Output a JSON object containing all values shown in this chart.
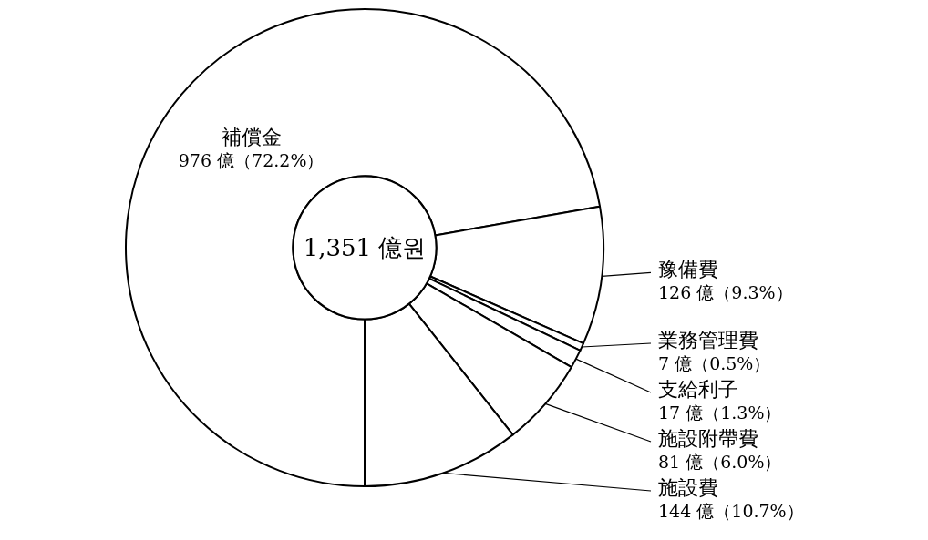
{
  "chart_data": {
    "type": "donut",
    "categories": [
      "補償金",
      "豫備費",
      "業務管理費",
      "支給利子",
      "施設附帶費",
      "施設費"
    ],
    "values": [
      976,
      126,
      7,
      17,
      81,
      144
    ],
    "value_labels": [
      "976 億（72.2%）",
      "126 億（9.3%）",
      "7 億（0.5%）",
      "17 億（1.3%）",
      "81 億（6.0%）",
      "144 億（10.7%）"
    ],
    "colors": [
      "#ffffff",
      "#ffffff",
      "#ffffff",
      "#ffffff",
      "#ffffff",
      "#ffffff"
    ],
    "annotations": [
      "1,351 億원"
    ]
  }
}
